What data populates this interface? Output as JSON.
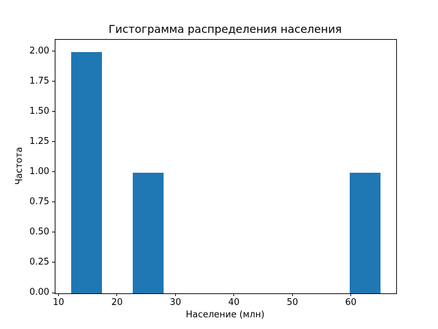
{
  "chart_data": {
    "type": "bar",
    "subtype": "histogram",
    "title": "Гистограмма распределения населения",
    "xlabel": "Население (млн)",
    "ylabel": "Частота",
    "bin_edges": [
      12.0,
      17.3,
      22.6,
      27.9,
      33.2,
      38.5,
      43.8,
      49.1,
      54.4,
      59.7,
      65.0
    ],
    "counts": [
      2,
      0,
      1,
      0,
      0,
      0,
      0,
      0,
      0,
      1
    ],
    "xticks": [
      10,
      20,
      30,
      40,
      50,
      60
    ],
    "xtick_labels": [
      "10",
      "20",
      "30",
      "40",
      "50",
      "60"
    ],
    "yticks": [
      0,
      0.25,
      0.5,
      0.75,
      1.0,
      1.25,
      1.5,
      1.75,
      2.0
    ],
    "ytick_labels": [
      "0.00",
      "0.25",
      "0.50",
      "0.75",
      "1.00",
      "1.25",
      "1.50",
      "1.75",
      "2.00"
    ],
    "xlim": [
      9.35,
      67.65
    ],
    "ylim": [
      0,
      2.1
    ],
    "bar_color": "#1f77b4",
    "background_color": "#ffffff",
    "spine_color": "#000000",
    "grid": false,
    "legend": null
  }
}
